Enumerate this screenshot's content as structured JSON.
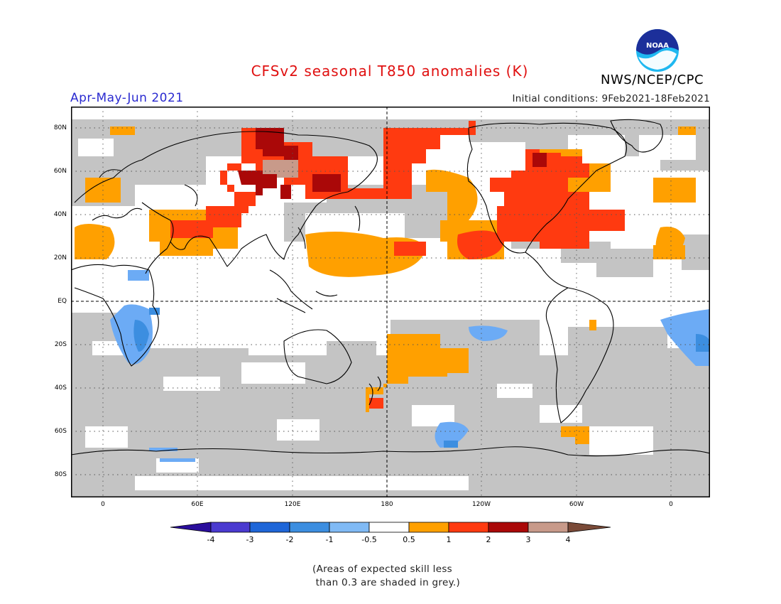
{
  "header": {
    "title": "CFSv2 seasonal T850 anomalies (K)",
    "season": "Apr-May-Jun 2021",
    "initial_conditions": "Initial conditions: 9Feb2021-18Feb2021",
    "agency": "NWS/NCEP/CPC",
    "logo_text": "NOAA",
    "logo_icon": "noaa-logo-icon"
  },
  "map": {
    "type": "global-map",
    "lat_labels": [
      "80N",
      "60N",
      "40N",
      "20N",
      "EQ",
      "20S",
      "40S",
      "60S",
      "80S"
    ],
    "lon_labels": [
      "0",
      "60E",
      "120E",
      "180",
      "120W",
      "60W",
      "0"
    ],
    "colors": {
      "grey": "#c4c4c4",
      "light_blue": "#6cabf5",
      "med_blue": "#3c8ee0",
      "orange": "#ffa000",
      "red_orange": "#ff3a10",
      "dark_red": "#aa0808",
      "tan": "#c89a8a"
    }
  },
  "legend": {
    "labels": [
      "-4",
      "-3",
      "-2",
      "-1",
      "-0.5",
      "0.5",
      "1",
      "2",
      "3",
      "4"
    ],
    "colors": [
      "#2a0e9c",
      "#4a3ad0",
      "#1e66d8",
      "#3c8ee0",
      "#80baf5",
      "#ffffff",
      "#ffa000",
      "#ff3a10",
      "#aa0808",
      "#c89a8a",
      "#7a4a38"
    ]
  },
  "note": "(Areas of expected skill less\n than 0.3 are shaded in grey.)"
}
